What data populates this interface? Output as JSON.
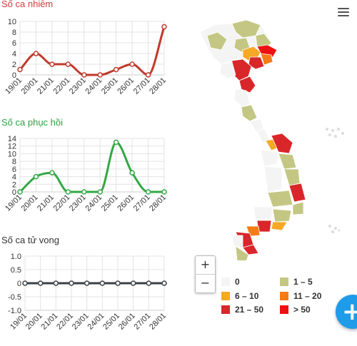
{
  "charts": [
    {
      "title": "Số ca nhiễm",
      "title_color": "#d33a3a",
      "line_color": "#c0392b",
      "dates": [
        "19/01",
        "20/01",
        "21/01",
        "22/01",
        "23/01",
        "24/01",
        "25/01",
        "26/01",
        "27/01",
        "28/01"
      ],
      "values": [
        1,
        4,
        2,
        2,
        0,
        0,
        1,
        2,
        0,
        9
      ],
      "ylim": [
        0,
        10
      ],
      "yticks": [
        "0",
        "2",
        "4",
        "6",
        "8",
        "10"
      ]
    },
    {
      "title": "Số ca phục hồi",
      "title_color": "#2ea043",
      "line_color": "#33a845",
      "dates": [
        "19/01",
        "20/01",
        "21/01",
        "22/01",
        "23/01",
        "24/01",
        "25/01",
        "26/01",
        "27/01",
        "28/01"
      ],
      "values": [
        0,
        4,
        5,
        0,
        0,
        0,
        13,
        5,
        0,
        0
      ],
      "ylim": [
        0,
        14
      ],
      "yticks": [
        "0",
        "2",
        "4",
        "6",
        "8",
        "10",
        "12",
        "14"
      ]
    },
    {
      "title": "Số ca tử vong",
      "title_color": "#333333",
      "line_color": "#3a4046",
      "dates": [
        "19/01",
        "20/01",
        "21/01",
        "22/01",
        "23/01",
        "24/01",
        "25/01",
        "26/01",
        "27/01",
        "28/01"
      ],
      "values": [
        0,
        0,
        0,
        0,
        0,
        0,
        0,
        0,
        0,
        0
      ],
      "ylim": [
        -1,
        1
      ],
      "yticks": [
        "-1.0",
        "-0.5",
        "0",
        "0.5",
        "1.0"
      ]
    }
  ],
  "map": {
    "zoom_in": "+",
    "zoom_out": "−",
    "legend": [
      {
        "label": "0",
        "color": "#f4f4f4"
      },
      {
        "label": "1 – 5",
        "color": "#c4c783"
      },
      {
        "label": "6 – 10",
        "color": "#f7a825"
      },
      {
        "label": "11 – 20",
        "color": "#f37c16"
      },
      {
        "label": "21 – 50",
        "color": "#d9262a"
      },
      {
        "label": "> 50",
        "color": "#ee1111"
      }
    ]
  },
  "fab_label": "+"
}
